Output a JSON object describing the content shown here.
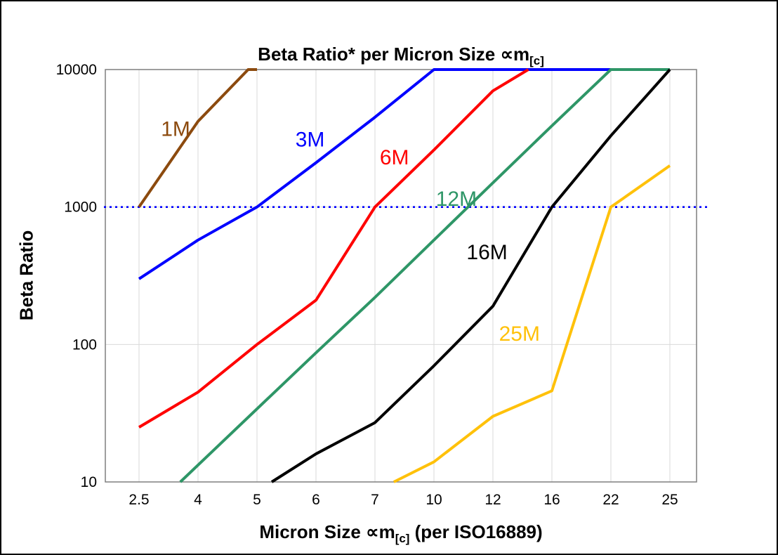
{
  "frame": {
    "background": "#ffffff",
    "border_color": "#000000"
  },
  "header": {
    "title_pre": "Beta Ratio* per Micron Size ∝m",
    "title_sub": "[c]"
  },
  "axes": {
    "y_label": "Beta Ratio",
    "x_label_pre": "Micron Size ∝m",
    "x_label_sub": "[c]",
    "x_label_post": " (per ISO16889)"
  },
  "chart_data": {
    "type": "line",
    "title": "Beta Ratio* per Micron Size ∝m[c]",
    "xlabel": "Micron Size ∝m[c] (per ISO16889)",
    "ylabel": "Beta Ratio",
    "x_categories": [
      "2.5",
      "4",
      "5",
      "6",
      "7",
      "10",
      "12",
      "16",
      "22",
      "25"
    ],
    "y_scale": "log",
    "ylim": [
      10,
      10000
    ],
    "y_ticks": [
      10,
      100,
      1000,
      10000
    ],
    "grid": true,
    "grid_color": "#d9d9d9",
    "plot_border_color": "#7f7f7f",
    "legend": "direct-labels-on-lines",
    "reference_line": {
      "value": 1000,
      "color": "#0000ff",
      "style": "dotted"
    },
    "series": [
      {
        "name": "1M",
        "label": "1M",
        "color": "#8c4a0e",
        "label_at": [
          0.62,
          3700
        ],
        "points": [
          [
            0,
            1000
          ],
          [
            1,
            4200
          ],
          [
            1.85,
            10000
          ],
          [
            2,
            10000
          ]
        ]
      },
      {
        "name": "3M",
        "label": "3M",
        "color": "#0000ff",
        "label_at": [
          2.9,
          3100
        ],
        "points": [
          [
            0,
            300
          ],
          [
            1,
            575
          ],
          [
            2,
            1000
          ],
          [
            3,
            2100
          ],
          [
            4,
            4500
          ],
          [
            5,
            10000
          ],
          [
            8,
            10000
          ]
        ]
      },
      {
        "name": "6M",
        "label": "6M",
        "color": "#ff0000",
        "label_at": [
          4.33,
          2300
        ],
        "points": [
          [
            0,
            25
          ],
          [
            1,
            45
          ],
          [
            2,
            100
          ],
          [
            3,
            210
          ],
          [
            4,
            1000
          ],
          [
            5,
            2600
          ],
          [
            6,
            7000
          ],
          [
            6.6,
            10000
          ]
        ]
      },
      {
        "name": "12M",
        "label": "12M",
        "color": "#2e9667",
        "label_at": [
          5.38,
          1150
        ],
        "points": [
          [
            0.7,
            10
          ],
          [
            2,
            34
          ],
          [
            3,
            87
          ],
          [
            4,
            220
          ],
          [
            5,
            575
          ],
          [
            6,
            1500
          ],
          [
            7,
            3900
          ],
          [
            8,
            10000
          ],
          [
            9,
            10000
          ]
        ]
      },
      {
        "name": "16M",
        "label": "16M",
        "color": "#000000",
        "label_at": [
          5.9,
          470
        ],
        "points": [
          [
            2.25,
            10
          ],
          [
            3,
            16
          ],
          [
            4,
            27
          ],
          [
            5,
            70
          ],
          [
            6,
            190
          ],
          [
            7,
            1000
          ],
          [
            8,
            3300
          ],
          [
            9,
            10000
          ]
        ]
      },
      {
        "name": "25M",
        "label": "25M",
        "color": "#ffc10a",
        "label_at": [
          6.45,
          120
        ],
        "points": [
          [
            4.32,
            10
          ],
          [
            5,
            14
          ],
          [
            6,
            30
          ],
          [
            7,
            46
          ],
          [
            8,
            1000
          ],
          [
            9,
            2000
          ]
        ]
      }
    ]
  }
}
